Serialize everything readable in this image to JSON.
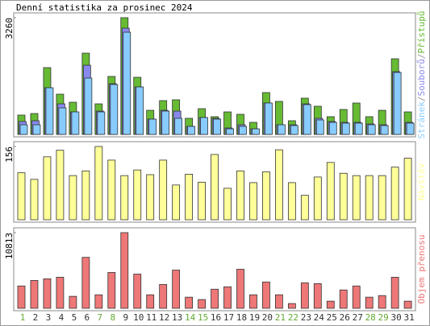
{
  "title": "Denní statistika za prosinec 2024",
  "chart_data": [
    {
      "type": "bar",
      "series": [
        {
          "name": "Přístupů",
          "color": "#66bb33",
          "values": [
            540,
            584,
            1866,
            1124,
            899,
            2270,
            854,
            1619,
            3260,
            1596,
            674,
            944,
            967,
            450,
            719,
            495,
            629,
            562,
            337,
            1169,
            922,
            382,
            1012,
            787,
            495,
            697,
            877,
            495,
            674,
            2113,
            629
          ]
        },
        {
          "name": "Souborů",
          "color": "#8888ee",
          "values": [
            360,
            382,
            1304,
            854,
            629,
            1933,
            652,
            1416,
            2967,
            1326,
            427,
            674,
            652,
            225,
            472,
            450,
            180,
            270,
            157,
            877,
            270,
            270,
            854,
            450,
            360,
            337,
            337,
            292,
            270,
            1753,
            337
          ]
        },
        {
          "name": "Stránek",
          "color": "#88ccff",
          "values": [
            270,
            270,
            1304,
            742,
            629,
            1574,
            629,
            1394,
            2855,
            1326,
            427,
            652,
            450,
            225,
            472,
            427,
            157,
            225,
            157,
            877,
            270,
            247,
            832,
            405,
            337,
            315,
            315,
            270,
            247,
            1731,
            315
          ]
        }
      ],
      "legend_separator": "/",
      "ylim": [
        0,
        3260
      ],
      "yticks": [
        3260
      ]
    },
    {
      "type": "bar",
      "series": [
        {
          "name": "Návštěv",
          "color": "#ffff99",
          "values": [
            100,
            86,
            134,
            148,
            94,
            104,
            156,
            127,
            94,
            106,
            96,
            127,
            74,
            97,
            80,
            139,
            67,
            104,
            79,
            102,
            149,
            79,
            52,
            91,
            122,
            99,
            94,
            94,
            94,
            112,
            131
          ]
        }
      ],
      "ylim": [
        0,
        156
      ],
      "yticks": [
        156
      ]
    },
    {
      "type": "bar",
      "series": [
        {
          "name": "Objem přenosu",
          "color": "#ee7777",
          "values": [
            3190,
            3980,
            4210,
            4440,
            1710,
            7280,
            1930,
            5120,
            10813,
            4890,
            1930,
            3410,
            5460,
            1590,
            1250,
            2730,
            3070,
            5580,
            1930,
            3760,
            1930,
            680,
            3640,
            3530,
            1020,
            2620,
            3190,
            1590,
            1820,
            4440,
            1020
          ]
        }
      ],
      "categories": [
        "1",
        "2",
        "3",
        "4",
        "5",
        "6",
        "7",
        "8",
        "9",
        "10",
        "11",
        "12",
        "13",
        "14",
        "15",
        "16",
        "17",
        "18",
        "19",
        "20",
        "21",
        "22",
        "23",
        "24",
        "25",
        "26",
        "27",
        "28",
        "29",
        "30",
        "31"
      ],
      "category_colors": [
        "#66aa33",
        "#333333",
        "#333333",
        "#333333",
        "#333333",
        "#333333",
        "#66aa33",
        "#66aa33",
        "#333333",
        "#333333",
        "#333333",
        "#333333",
        "#333333",
        "#66aa33",
        "#66aa33",
        "#333333",
        "#333333",
        "#333333",
        "#333333",
        "#333333",
        "#66aa33",
        "#66aa33",
        "#333333",
        "#333333",
        "#333333",
        "#333333",
        "#333333",
        "#66aa33",
        "#66aa33",
        "#333333",
        "#333333"
      ],
      "ylim": [
        0,
        10813
      ],
      "yticks": [
        10813
      ]
    }
  ]
}
